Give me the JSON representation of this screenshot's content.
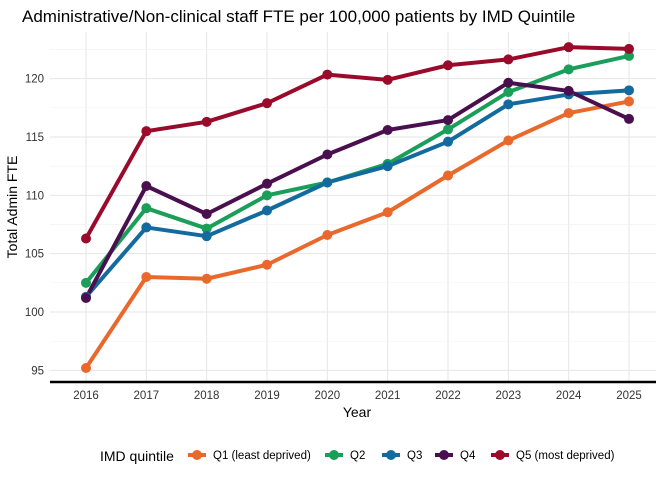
{
  "chart_data": {
    "type": "line",
    "title": "Administrative/Non-clinical staff FTE per 100,000 patients by IMD Quintile",
    "xlabel": "Year",
    "ylabel": "Total Admin FTE",
    "x": [
      2016,
      2017,
      2018,
      2019,
      2020,
      2021,
      2022,
      2023,
      2024,
      2025
    ],
    "xlim": [
      2016,
      2025
    ],
    "ylim": [
      94,
      124
    ],
    "yticks": [
      95,
      100,
      105,
      110,
      115,
      120
    ],
    "grid": true,
    "legend": {
      "title": "IMD quintile",
      "position": "bottom"
    },
    "series": [
      {
        "name": "Q1 (least deprived)",
        "color": "#E8692B",
        "values": [
          95.2,
          103.0,
          102.85,
          104.05,
          106.6,
          108.55,
          111.7,
          114.7,
          117.05,
          118.05
        ]
      },
      {
        "name": "Q2",
        "color": "#1A9E5A",
        "values": [
          102.5,
          108.9,
          107.15,
          110.0,
          111.1,
          112.7,
          115.65,
          118.85,
          120.8,
          121.95
        ]
      },
      {
        "name": "Q3",
        "color": "#136A9E",
        "values": [
          101.3,
          107.25,
          106.5,
          108.7,
          111.1,
          112.5,
          114.6,
          117.8,
          118.65,
          119.0
        ]
      },
      {
        "name": "Q4",
        "color": "#4A0F4E",
        "values": [
          101.2,
          110.8,
          108.4,
          111.0,
          113.5,
          115.6,
          116.45,
          119.65,
          118.95,
          116.55
        ]
      },
      {
        "name": "Q5 (most deprived)",
        "color": "#9A0A2A",
        "values": [
          106.3,
          115.5,
          116.3,
          117.9,
          120.35,
          119.9,
          121.15,
          121.65,
          122.7,
          122.55
        ]
      }
    ]
  }
}
